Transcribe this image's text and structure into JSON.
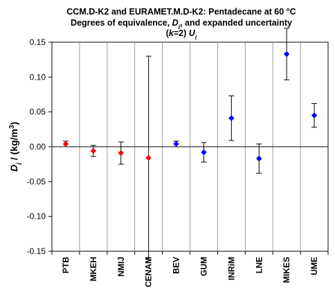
{
  "chart_data": {
    "type": "scatter",
    "title": {
      "line1": "CCM.D-K2 and EURAMET.M.D-K2: Pentadecane at 60 °C",
      "line2": [
        {
          "text": "Degrees of equivalence, ",
          "italic": false
        },
        {
          "text": "D",
          "italic": true
        },
        {
          "text": "i",
          "italic": true,
          "sub": true
        },
        {
          "text": ", and expanded uncertainty",
          "italic": false
        }
      ],
      "line3": [
        {
          "text": "(",
          "italic": false
        },
        {
          "text": "k",
          "italic": true
        },
        {
          "text": "=2) ",
          "italic": false
        },
        {
          "text": "U",
          "italic": true
        },
        {
          "text": "i",
          "italic": true,
          "sub": true
        }
      ]
    },
    "ylabel": [
      {
        "text": "D",
        "italic": true
      },
      {
        "text": "i",
        "italic": true,
        "sub": true
      },
      {
        "text": " / (kg/m",
        "italic": false
      },
      {
        "text": "3",
        "italic": false,
        "sup": true
      },
      {
        "text": ")",
        "italic": false
      }
    ],
    "ylim": [
      -0.15,
      0.15
    ],
    "yticks": [
      0.15,
      0.1,
      0.05,
      0.0,
      -0.05,
      -0.1,
      -0.15
    ],
    "ytick_labels": [
      "0.15",
      "0.10",
      "0.05",
      "0.00",
      "-0.05",
      "-0.10",
      "-0.15"
    ],
    "grid": "vertical category separators",
    "categories": [
      "PTB",
      "MKEH",
      "NMIJ",
      "CENAM",
      "BEV",
      "GUM",
      "INRiM",
      "LNE",
      "MIKES",
      "UME"
    ],
    "points": [
      {
        "label": "PTB",
        "y": 0.004,
        "U": 0.004,
        "color": "#ff0000"
      },
      {
        "label": "MKEH",
        "y": -0.006,
        "U": 0.008,
        "color": "#ff0000"
      },
      {
        "label": "NMIJ",
        "y": -0.009,
        "U": 0.016,
        "color": "#ff0000"
      },
      {
        "label": "CENAM",
        "y": -0.016,
        "U": 0.146,
        "color": "#ff0000"
      },
      {
        "label": "BEV",
        "y": 0.004,
        "U": 0.004,
        "color": "#0000ff"
      },
      {
        "label": "GUM",
        "y": -0.008,
        "U": 0.014,
        "color": "#0000ff"
      },
      {
        "label": "INRiM",
        "y": 0.041,
        "U": 0.032,
        "color": "#0000ff"
      },
      {
        "label": "LNE",
        "y": -0.017,
        "U": 0.021,
        "color": "#0000ff"
      },
      {
        "label": "MIKES",
        "y": 0.133,
        "U": 0.037,
        "color": "#0000ff"
      },
      {
        "label": "UME",
        "y": 0.045,
        "U": 0.017,
        "color": "#0000ff"
      }
    ]
  }
}
